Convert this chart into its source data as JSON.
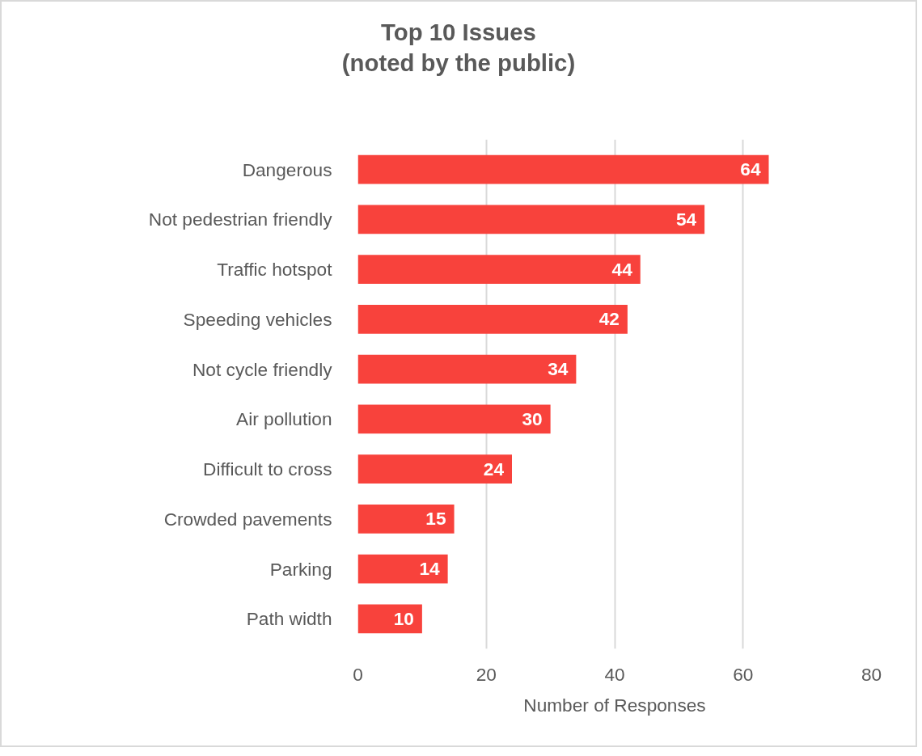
{
  "chart_data": {
    "type": "bar",
    "orientation": "horizontal",
    "title": "Top 10 Issues\n(noted by the public)",
    "xlabel": "Number of Responses",
    "categories": [
      "Dangerous",
      "Not pedestrian friendly",
      "Traffic hotspot",
      "Speeding vehicles",
      "Not cycle friendly",
      "Air pollution",
      "Difficult to cross",
      "Crowded pavements",
      "Parking",
      "Path width"
    ],
    "values": [
      64,
      54,
      44,
      42,
      34,
      30,
      24,
      15,
      14,
      10
    ],
    "color": "#f8423c",
    "xlim": [
      0,
      80
    ],
    "xticks": [
      0,
      20,
      40,
      60,
      80
    ],
    "grid": "x",
    "data_labels": true,
    "legend": false
  }
}
